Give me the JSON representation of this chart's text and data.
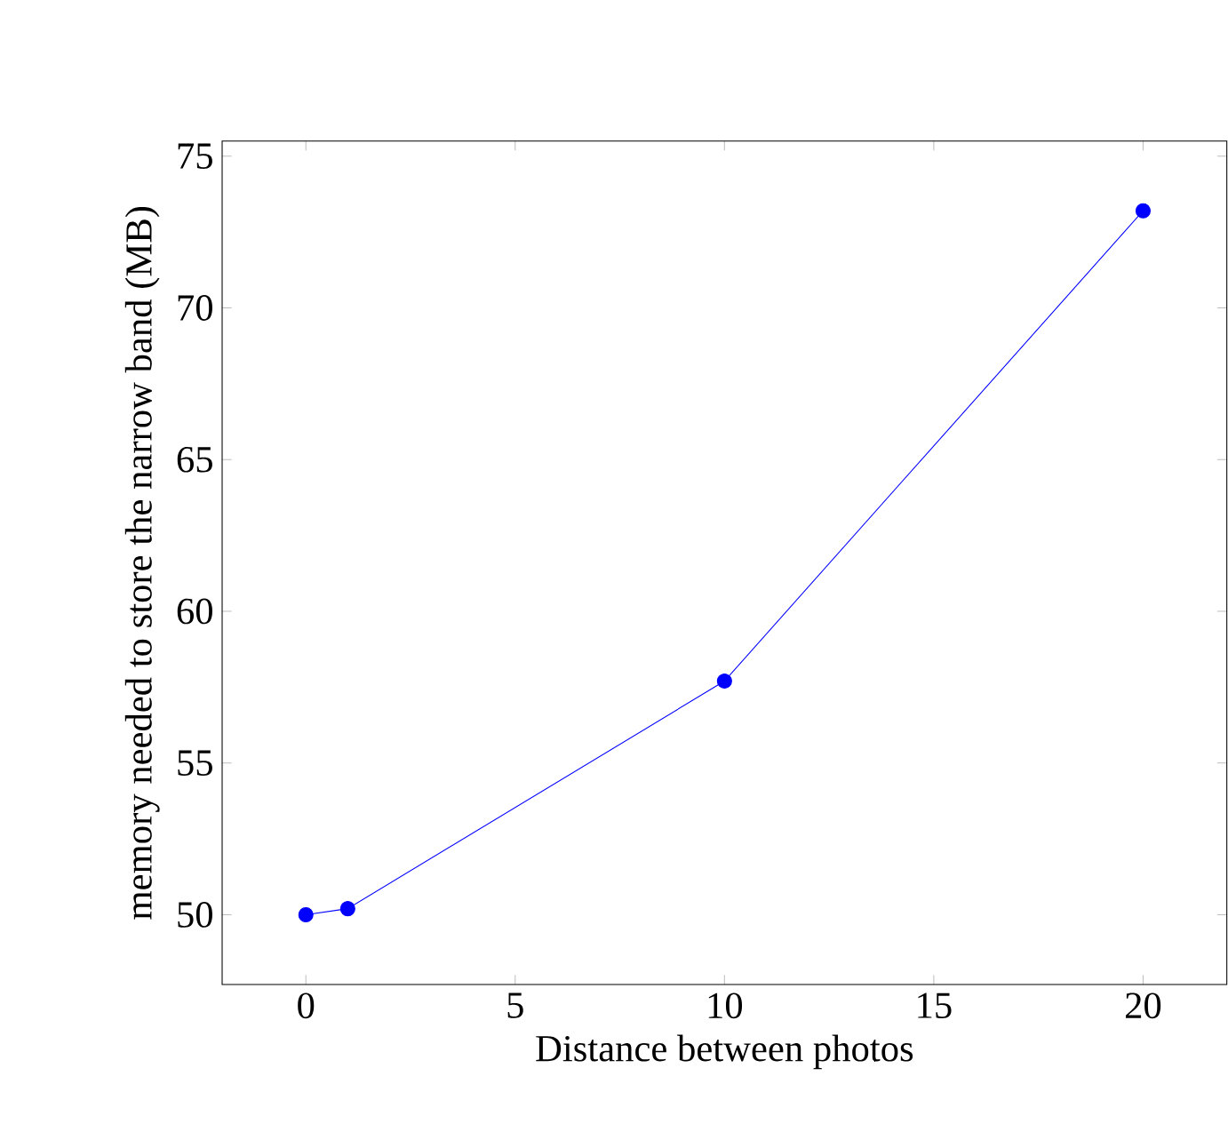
{
  "chart_data": {
    "type": "line",
    "xlabel": "Distance between photos",
    "ylabel": "memory needed to store the narrow band (MB)",
    "x": [
      0,
      1,
      10,
      20
    ],
    "series": [
      {
        "color": "#0000ff",
        "values": [
          50.0,
          50.2,
          57.7,
          73.2
        ]
      }
    ],
    "xlim": [
      -2,
      22
    ],
    "ylim": [
      47.7,
      75.5
    ],
    "xticks": [
      0,
      5,
      10,
      15,
      20
    ],
    "yticks": [
      50,
      55,
      60,
      65,
      70,
      75
    ],
    "marker": "circle",
    "line_style": "solid",
    "grid": false
  }
}
